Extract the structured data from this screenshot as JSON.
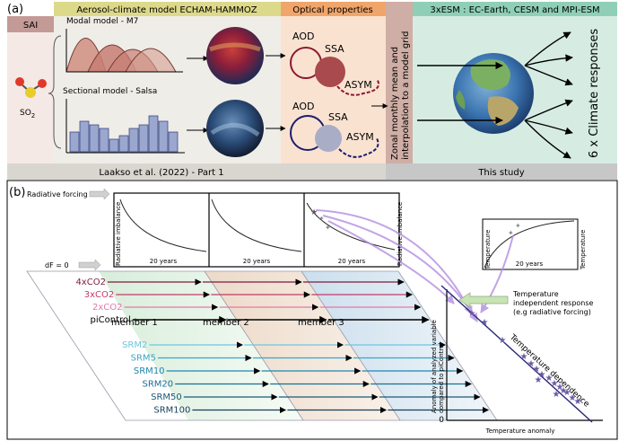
{
  "panel_a": {
    "label": "(a)",
    "headers": {
      "aerosol": "Aerosol-climate model ECHAM-HAMMOZ",
      "optical": "Optical properties",
      "esm": "3xESM : EC-Earth, CESM and MPI-ESM",
      "sai": "SAI"
    },
    "so2": "SO",
    "so2_sub": "2",
    "modal_title": "Modal model - M7",
    "sectional_title": "Sectional model - Salsa",
    "aod": "AOD",
    "ssa": "SSA",
    "asym": "ASYM",
    "zonal_line1": "Zonal monthly mean and",
    "zonal_line2": "interpolation to a model grid",
    "responses": "6 x Climate responses",
    "footer_left": "Laakso et al. (2022) - Part 1",
    "footer_right": "This study"
  },
  "panel_b": {
    "label": "(b)",
    "radiative_forcing": "Radiative forcing",
    "df0": "dF = 0",
    "radiative_imbalance": "Radiative imbalance",
    "twenty_years": "20 years",
    "members": [
      "member 1",
      "member 2",
      "member 3"
    ],
    "co2_scenarios": [
      {
        "label": "4xCO2",
        "color": "#7a1c3c"
      },
      {
        "label": "3xCO2",
        "color": "#c23a6a"
      },
      {
        "label": "2xCO2",
        "color": "#e07aa8"
      }
    ],
    "picontrol": "piControl",
    "srm_scenarios": [
      {
        "label": "SRM2",
        "color": "#6ec6de"
      },
      {
        "label": "SRM5",
        "color": "#3aa6c8"
      },
      {
        "label": "SRM10",
        "color": "#1f86ae"
      },
      {
        "label": "SRM20",
        "color": "#1b6f92"
      },
      {
        "label": "SRM50",
        "color": "#195a78"
      },
      {
        "label": "SRM100",
        "color": "#173f57"
      }
    ],
    "temperature": "Temperature",
    "temp_indep_line1": "Temperature",
    "temp_indep_line2": "independent response",
    "temp_indep_line3": "(e.g radiative forcing)",
    "temp_dependence": "Temperature dependence",
    "anomaly_ylabel_1": "Anomaly of analyzed variable",
    "anomaly_ylabel_2": "compared to piControl",
    "anomaly_xlabel": "Temperature anomaly",
    "zero": "0"
  }
}
